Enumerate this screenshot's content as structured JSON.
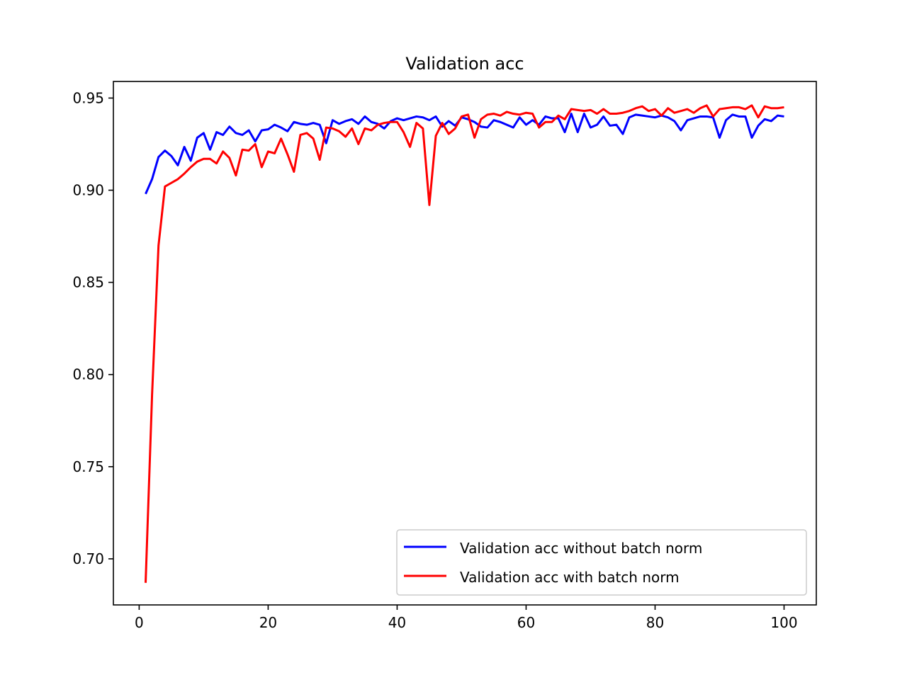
{
  "chart_data": {
    "type": "line",
    "title": "Validation acc",
    "xlabel": "",
    "ylabel": "",
    "xlim": [
      -4,
      105
    ],
    "ylim": [
      0.675,
      0.959
    ],
    "xticks": [
      0,
      20,
      40,
      60,
      80,
      100
    ],
    "yticks": [
      0.7,
      0.75,
      0.8,
      0.85,
      0.9,
      0.95
    ],
    "xtick_labels": [
      "0",
      "20",
      "40",
      "60",
      "80",
      "100"
    ],
    "ytick_labels": [
      "0.70",
      "0.75",
      "0.80",
      "0.85",
      "0.90",
      "0.95"
    ],
    "grid": false,
    "legend_position": "lower-right",
    "x": [
      1,
      2,
      3,
      4,
      5,
      6,
      7,
      8,
      9,
      10,
      11,
      12,
      13,
      14,
      15,
      16,
      17,
      18,
      19,
      20,
      21,
      22,
      23,
      24,
      25,
      26,
      27,
      28,
      29,
      30,
      31,
      32,
      33,
      34,
      35,
      36,
      37,
      38,
      39,
      40,
      41,
      42,
      43,
      44,
      45,
      46,
      47,
      48,
      49,
      50,
      51,
      52,
      53,
      54,
      55,
      56,
      57,
      58,
      59,
      60,
      61,
      62,
      63,
      64,
      65,
      66,
      67,
      68,
      69,
      70,
      71,
      72,
      73,
      74,
      75,
      76,
      77,
      78,
      79,
      80,
      81,
      82,
      83,
      84,
      85,
      86,
      87,
      88,
      89,
      90,
      91,
      92,
      93,
      94,
      95,
      96,
      97,
      98,
      99,
      100
    ],
    "series": [
      {
        "name": "Validation acc without batch norm",
        "color": "#0000ff",
        "values": [
          0.898,
          0.906,
          0.918,
          0.9215,
          0.9185,
          0.9135,
          0.9235,
          0.916,
          0.9285,
          0.931,
          0.922,
          0.9315,
          0.93,
          0.9345,
          0.931,
          0.93,
          0.9325,
          0.9265,
          0.9325,
          0.933,
          0.9355,
          0.934,
          0.932,
          0.937,
          0.936,
          0.9355,
          0.9365,
          0.9355,
          0.9255,
          0.938,
          0.936,
          0.9375,
          0.9385,
          0.936,
          0.94,
          0.937,
          0.936,
          0.9335,
          0.9375,
          0.939,
          0.938,
          0.939,
          0.94,
          0.9395,
          0.938,
          0.94,
          0.9345,
          0.9375,
          0.935,
          0.9395,
          0.9385,
          0.937,
          0.9345,
          0.934,
          0.938,
          0.937,
          0.9355,
          0.934,
          0.9395,
          0.9355,
          0.938,
          0.9355,
          0.94,
          0.939,
          0.939,
          0.9315,
          0.9415,
          0.9315,
          0.9415,
          0.934,
          0.9355,
          0.94,
          0.935,
          0.9355,
          0.9305,
          0.9395,
          0.941,
          0.9405,
          0.94,
          0.9395,
          0.9405,
          0.9395,
          0.9375,
          0.9325,
          0.938,
          0.939,
          0.94,
          0.94,
          0.9395,
          0.9285,
          0.938,
          0.941,
          0.94,
          0.94,
          0.9285,
          0.935,
          0.9385,
          0.9375,
          0.9405,
          0.94
        ]
      },
      {
        "name": "Validation acc with batch norm",
        "color": "#ff0000",
        "values": [
          0.687,
          0.789,
          0.87,
          0.902,
          0.904,
          0.906,
          0.909,
          0.9125,
          0.9155,
          0.917,
          0.917,
          0.9145,
          0.921,
          0.9175,
          0.908,
          0.922,
          0.9215,
          0.925,
          0.9125,
          0.921,
          0.92,
          0.928,
          0.9195,
          0.91,
          0.93,
          0.931,
          0.928,
          0.9165,
          0.934,
          0.9335,
          0.932,
          0.929,
          0.9335,
          0.925,
          0.9335,
          0.9325,
          0.9355,
          0.9365,
          0.937,
          0.937,
          0.9315,
          0.9235,
          0.9365,
          0.9335,
          0.892,
          0.9295,
          0.9365,
          0.9305,
          0.9335,
          0.94,
          0.941,
          0.9285,
          0.9385,
          0.941,
          0.9415,
          0.9405,
          0.9425,
          0.9415,
          0.941,
          0.942,
          0.9415,
          0.934,
          0.937,
          0.937,
          0.9405,
          0.9385,
          0.944,
          0.9435,
          0.943,
          0.9435,
          0.9415,
          0.944,
          0.9415,
          0.9415,
          0.942,
          0.943,
          0.9445,
          0.9455,
          0.943,
          0.944,
          0.9405,
          0.9445,
          0.942,
          0.943,
          0.944,
          0.942,
          0.9445,
          0.946,
          0.94,
          0.944,
          0.9445,
          0.945,
          0.945,
          0.944,
          0.946,
          0.9395,
          0.9455,
          0.9445,
          0.9445,
          0.945
        ]
      }
    ]
  }
}
